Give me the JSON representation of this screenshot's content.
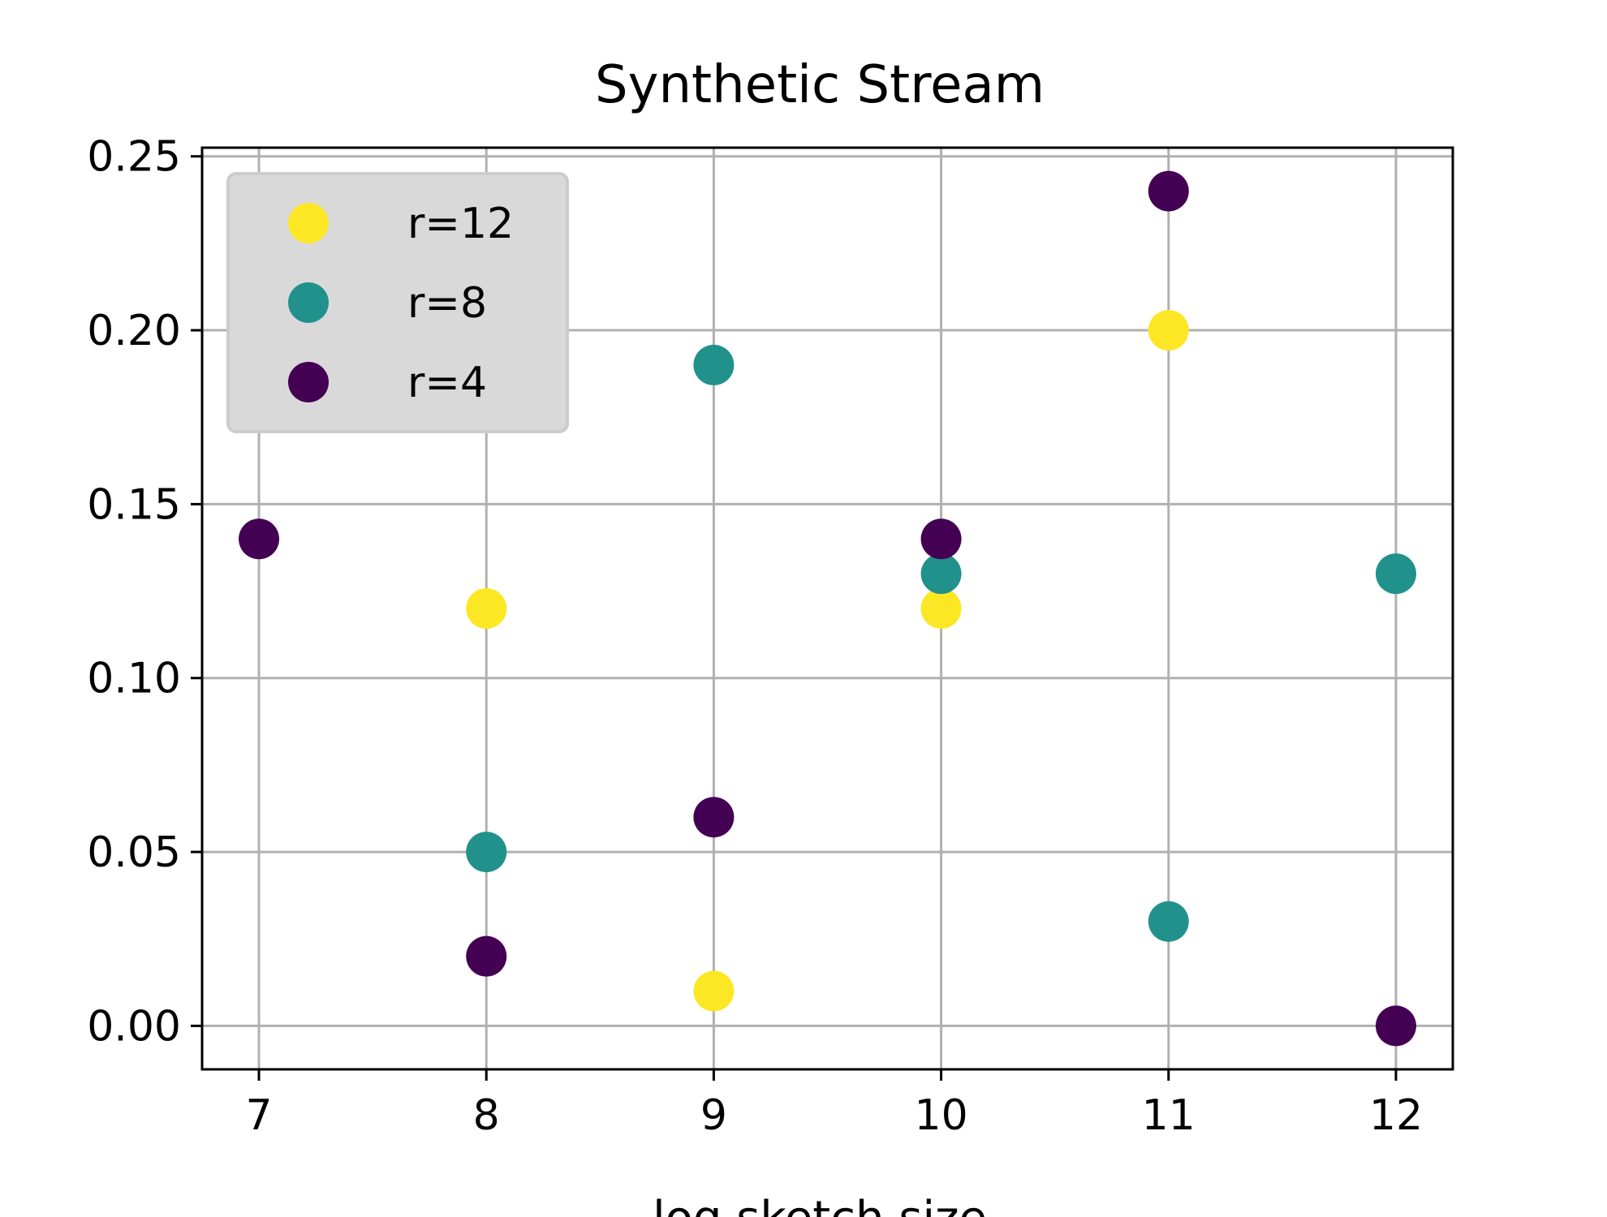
{
  "chart_data": {
    "type": "scatter",
    "title": "Synthetic Stream",
    "xlabel": "log sketch size",
    "ylabel": "",
    "xlim": [
      6.75,
      12.25
    ],
    "ylim": [
      -0.0125,
      0.2525
    ],
    "x_ticks": [
      7,
      8,
      9,
      10,
      11,
      12
    ],
    "x_tick_labels": [
      "7",
      "8",
      "9",
      "10",
      "11",
      "12"
    ],
    "y_ticks": [
      0.0,
      0.05,
      0.1,
      0.15,
      0.2,
      0.25
    ],
    "y_tick_labels": [
      "0.00",
      "0.05",
      "0.10",
      "0.15",
      "0.20",
      "0.25"
    ],
    "grid": true,
    "legend_position": "upper-left",
    "series": [
      {
        "name": "r=12",
        "color": "#fde725",
        "points": [
          {
            "x": 8,
            "y": 0.12
          },
          {
            "x": 9,
            "y": 0.01
          },
          {
            "x": 10,
            "y": 0.12
          },
          {
            "x": 11,
            "y": 0.2
          }
        ]
      },
      {
        "name": "r=8",
        "color": "#21918c",
        "points": [
          {
            "x": 8,
            "y": 0.05
          },
          {
            "x": 9,
            "y": 0.19
          },
          {
            "x": 10,
            "y": 0.13
          },
          {
            "x": 11,
            "y": 0.03
          },
          {
            "x": 12,
            "y": 0.13
          }
        ]
      },
      {
        "name": "r=4",
        "color": "#440154",
        "points": [
          {
            "x": 7,
            "y": 0.14
          },
          {
            "x": 8,
            "y": 0.02
          },
          {
            "x": 9,
            "y": 0.06
          },
          {
            "x": 10,
            "y": 0.14
          },
          {
            "x": 11,
            "y": 0.24
          },
          {
            "x": 12,
            "y": 0.0
          }
        ]
      }
    ]
  }
}
